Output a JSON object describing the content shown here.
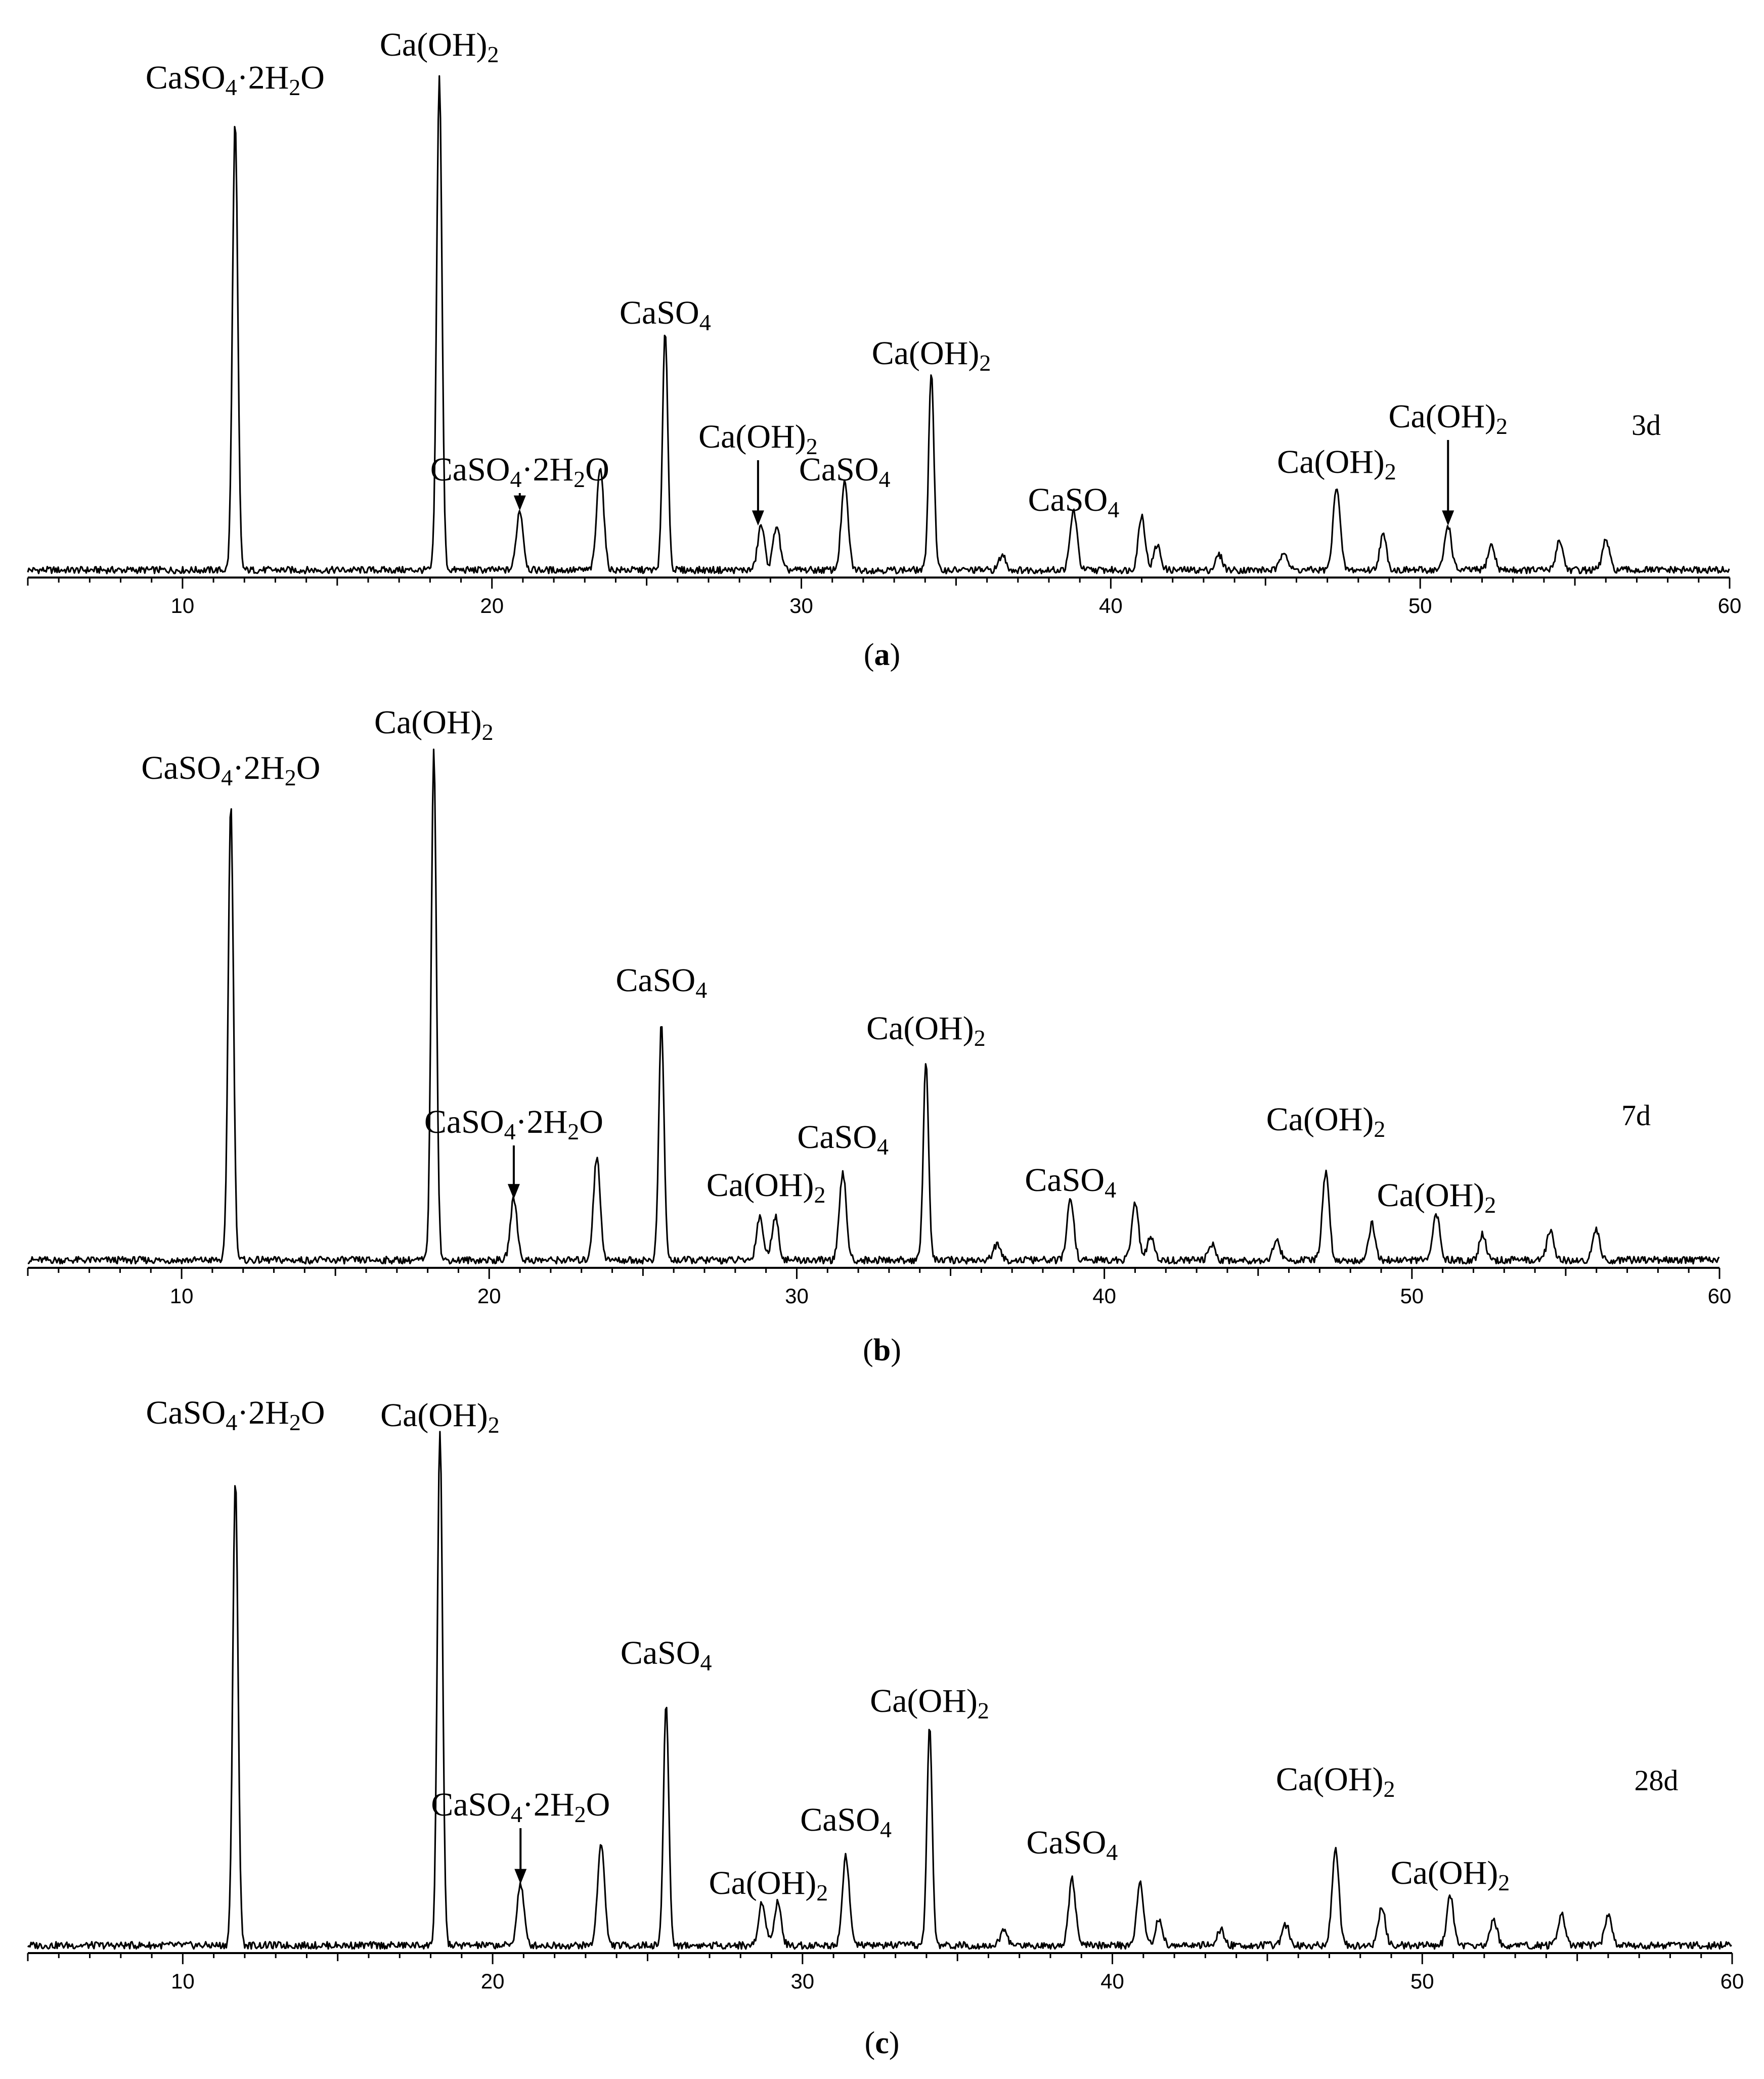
{
  "chart_data": [
    {
      "type": "line",
      "panel_caption": "(a)",
      "sample_label": "3d",
      "x_ticks": [
        10,
        20,
        30,
        40,
        50,
        60
      ],
      "xlim": [
        5,
        60
      ],
      "ylim": [
        0,
        1000
      ],
      "peaks": [
        [
          11.7,
          900
        ],
        [
          18.3,
          990
        ],
        [
          20.9,
          120
        ],
        [
          23.5,
          210
        ],
        [
          25.6,
          480
        ],
        [
          28.7,
          90
        ],
        [
          29.2,
          90
        ],
        [
          31.4,
          175
        ],
        [
          34.2,
          400
        ],
        [
          36.5,
          30
        ],
        [
          38.8,
          120
        ],
        [
          41.0,
          110
        ],
        [
          41.5,
          50
        ],
        [
          43.5,
          30
        ],
        [
          45.6,
          40
        ],
        [
          47.3,
          170
        ],
        [
          48.8,
          70
        ],
        [
          50.9,
          90
        ],
        [
          52.3,
          50
        ],
        [
          54.5,
          60
        ],
        [
          56.0,
          60
        ]
      ],
      "annotations": [
        {
          "text": "CaSO4·2H2O",
          "x": 11.7,
          "main": "CaSO",
          "sub1": "4",
          "mid": "·2H",
          "sub2": "2",
          "tail": "O"
        },
        {
          "text": "Ca(OH)2",
          "x": 18.3,
          "main": "Ca(OH)",
          "sub1": "2"
        },
        {
          "text": "CaSO4·2H2O",
          "x": 20.9,
          "main": "CaSO",
          "sub1": "4",
          "mid": "·2H",
          "sub2": "2",
          "tail": "O",
          "arrow": true
        },
        {
          "text": "CaSO4",
          "x": 25.6,
          "main": "CaSO",
          "sub1": "4"
        },
        {
          "text": "Ca(OH)2",
          "x": 28.6,
          "main": "Ca(OH)",
          "sub1": "2",
          "arrow": true
        },
        {
          "text": "CaSO4",
          "x": 31.4,
          "main": "CaSO",
          "sub1": "4"
        },
        {
          "text": "Ca(OH)2",
          "x": 34.2,
          "main": "Ca(OH)",
          "sub1": "2"
        },
        {
          "text": "CaSO4",
          "x": 38.8,
          "main": "CaSO",
          "sub1": "4"
        },
        {
          "text": "Ca(OH)2",
          "x": 47.3,
          "main": "Ca(OH)",
          "sub1": "2"
        },
        {
          "text": "Ca(OH)2",
          "x": 50.9,
          "main": "Ca(OH)",
          "sub1": "2",
          "arrow": true
        }
      ]
    },
    {
      "type": "line",
      "panel_caption": "(b)",
      "sample_label": "7d",
      "x_ticks": [
        10,
        20,
        30,
        40,
        50,
        60
      ],
      "xlim": [
        5,
        60
      ],
      "ylim": [
        0,
        1000
      ],
      "peaks": [
        [
          11.6,
          890
        ],
        [
          18.2,
          990
        ],
        [
          20.8,
          120
        ],
        [
          23.5,
          200
        ],
        [
          25.6,
          460
        ],
        [
          28.8,
          85
        ],
        [
          29.3,
          85
        ],
        [
          31.5,
          170
        ],
        [
          34.2,
          390
        ],
        [
          36.5,
          30
        ],
        [
          38.9,
          120
        ],
        [
          41.0,
          110
        ],
        [
          41.5,
          45
        ],
        [
          43.5,
          30
        ],
        [
          45.6,
          40
        ],
        [
          47.2,
          170
        ],
        [
          48.7,
          70
        ],
        [
          50.8,
          90
        ],
        [
          52.3,
          50
        ],
        [
          54.5,
          60
        ],
        [
          56.0,
          60
        ]
      ],
      "annotations": [
        {
          "text": "CaSO4·2H2O",
          "x": 11.6,
          "main": "CaSO",
          "sub1": "4",
          "mid": "·2H",
          "sub2": "2",
          "tail": "O"
        },
        {
          "text": "Ca(OH)2",
          "x": 18.2,
          "main": "Ca(OH)",
          "sub1": "2"
        },
        {
          "text": "CaSO4·2H2O",
          "x": 20.8,
          "main": "CaSO",
          "sub1": "4",
          "mid": "·2H",
          "sub2": "2",
          "tail": "O",
          "arrow": true
        },
        {
          "text": "CaSO4",
          "x": 25.6,
          "main": "CaSO",
          "sub1": "4"
        },
        {
          "text": "Ca(OH)2",
          "x": 29.0,
          "main": "Ca(OH)",
          "sub1": "2"
        },
        {
          "text": "CaSO4",
          "x": 31.5,
          "main": "CaSO",
          "sub1": "4"
        },
        {
          "text": "Ca(OH)2",
          "x": 34.2,
          "main": "Ca(OH)",
          "sub1": "2"
        },
        {
          "text": "CaSO4",
          "x": 38.9,
          "main": "CaSO",
          "sub1": "4"
        },
        {
          "text": "Ca(OH)2",
          "x": 47.2,
          "main": "Ca(OH)",
          "sub1": "2"
        },
        {
          "text": "Ca(OH)2",
          "x": 50.8,
          "main": "Ca(OH)",
          "sub1": "2"
        }
      ]
    },
    {
      "type": "line",
      "panel_caption": "(c)",
      "sample_label": "28d",
      "x_ticks": [
        10,
        20,
        30,
        40,
        50,
        60
      ],
      "xlim": [
        5,
        60
      ],
      "ylim": [
        0,
        1000
      ],
      "peaks": [
        [
          11.7,
          900
        ],
        [
          18.3,
          990
        ],
        [
          20.9,
          120
        ],
        [
          23.5,
          200
        ],
        [
          25.6,
          470
        ],
        [
          28.7,
          85
        ],
        [
          29.2,
          85
        ],
        [
          31.4,
          175
        ],
        [
          34.1,
          420
        ],
        [
          36.5,
          30
        ],
        [
          38.7,
          130
        ],
        [
          40.9,
          120
        ],
        [
          41.5,
          50
        ],
        [
          43.5,
          30
        ],
        [
          45.6,
          40
        ],
        [
          47.2,
          190
        ],
        [
          48.7,
          75
        ],
        [
          50.9,
          95
        ],
        [
          52.3,
          50
        ],
        [
          54.5,
          60
        ],
        [
          56.0,
          60
        ]
      ],
      "annotations": [
        {
          "text": "CaSO4·2H2O",
          "x": 11.7,
          "main": "CaSO",
          "sub1": "4",
          "mid": "·2H",
          "sub2": "2",
          "tail": "O"
        },
        {
          "text": "Ca(OH)2",
          "x": 18.3,
          "main": "Ca(OH)",
          "sub1": "2"
        },
        {
          "text": "CaSO4·2H2O",
          "x": 20.9,
          "main": "CaSO",
          "sub1": "4",
          "mid": "·2H",
          "sub2": "2",
          "tail": "O",
          "arrow": true
        },
        {
          "text": "CaSO4",
          "x": 25.6,
          "main": "CaSO",
          "sub1": "4"
        },
        {
          "text": "Ca(OH)2",
          "x": 28.9,
          "main": "Ca(OH)",
          "sub1": "2"
        },
        {
          "text": "CaSO4",
          "x": 31.4,
          "main": "CaSO",
          "sub1": "4"
        },
        {
          "text": "Ca(OH)2",
          "x": 34.1,
          "main": "Ca(OH)",
          "sub1": "2"
        },
        {
          "text": "CaSO4",
          "x": 38.7,
          "main": "CaSO",
          "sub1": "4"
        },
        {
          "text": "Ca(OH)2",
          "x": 47.2,
          "main": "Ca(OH)",
          "sub1": "2"
        },
        {
          "text": "Ca(OH)2",
          "x": 50.9,
          "main": "Ca(OH)",
          "sub1": "2"
        }
      ]
    }
  ]
}
